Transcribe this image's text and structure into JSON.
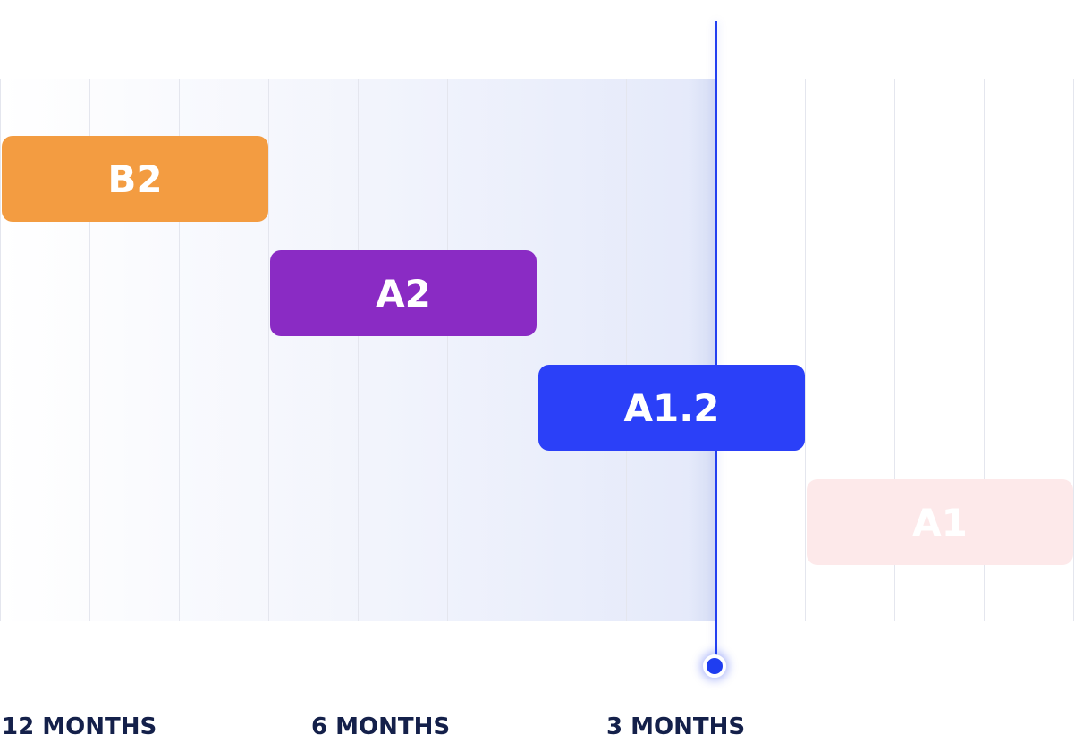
{
  "timeline": {
    "bars": [
      {
        "label": "B2",
        "color": "#f39c41"
      },
      {
        "label": "A2",
        "color": "#8a2bc4"
      },
      {
        "label": "A1.2",
        "color": "#2b40f8"
      },
      {
        "label": "A1",
        "color": "#fde9ea"
      }
    ],
    "axis_labels": [
      "12 MONTHS",
      "6 MONTHS",
      "3 MONTHS"
    ],
    "accent_color": "#2340f0",
    "text_color": "#14204a"
  }
}
